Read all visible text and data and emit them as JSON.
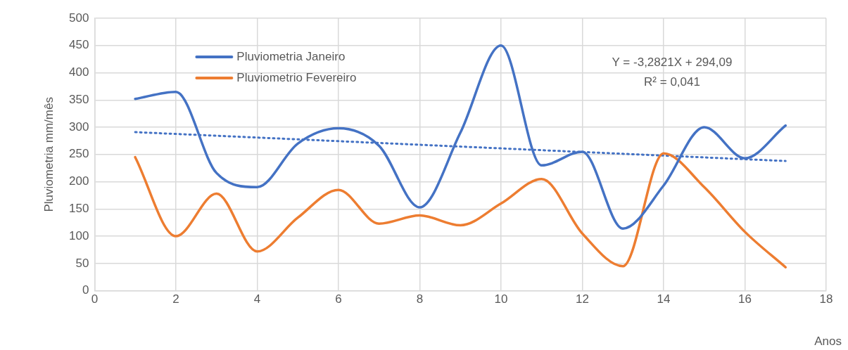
{
  "chart_data": {
    "type": "line",
    "xlabel": "Anos",
    "ylabel": "Pluviometria mm/mês",
    "x": [
      1,
      2,
      3,
      4,
      5,
      6,
      7,
      8,
      9,
      10,
      11,
      12,
      13,
      14,
      15,
      16,
      17
    ],
    "series": [
      {
        "name": "Pluviometria Janeiro",
        "color": "#4472c4",
        "values": [
          352,
          365,
          216,
          190,
          270,
          298,
          266,
          153,
          290,
          450,
          230,
          255,
          114,
          193,
          300,
          243,
          303
        ]
      },
      {
        "name": "Pluviometrio Fevereiro",
        "color": "#ed7d31",
        "values": [
          245,
          100,
          178,
          72,
          134,
          185,
          123,
          138,
          120,
          160,
          205,
          105,
          45,
          252,
          190,
          108,
          43
        ]
      },
      {
        "type": "line",
        "color": "#4472c4",
        "line_style": "dotted",
        "x": [
          1,
          17
        ],
        "values": [
          291,
          238
        ]
      }
    ],
    "xlim": [
      0,
      18
    ],
    "xticks": [
      0,
      2,
      4,
      6,
      8,
      10,
      12,
      14,
      16,
      18
    ],
    "ylim": [
      0,
      500
    ],
    "yticks": [
      0,
      50,
      100,
      150,
      200,
      250,
      300,
      350,
      400,
      450,
      500
    ],
    "grid": true,
    "legend": "top left",
    "marker": "none",
    "line_style": "solid",
    "annotations": [
      "Y = -3,2821X + 294,09",
      "R² = 0,041"
    ]
  }
}
